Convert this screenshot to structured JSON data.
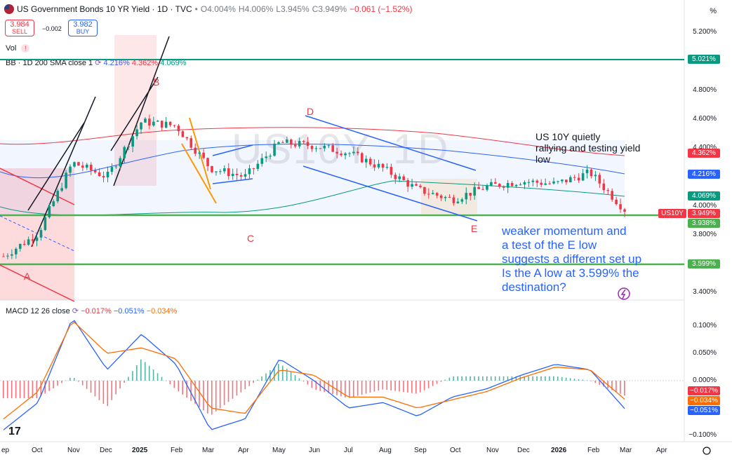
{
  "header": {
    "title": "US Government Bonds 10 YR Yield · 1D · TVC",
    "ohlc_o": "O4.004%",
    "ohlc_h": "H4.006%",
    "ohlc_l": "L3.945%",
    "ohlc_c": "C3.949%",
    "change": "−0.061 (−1.52%)"
  },
  "trade": {
    "sell_price": "3.984",
    "sell_label": "SELL",
    "spread": "−0.002",
    "buy_price": "3.982",
    "buy_label": "BUY"
  },
  "indicators": {
    "vol": "Vol",
    "bb_label": "BB · 1D 200 SMA close 1",
    "bb_mid": "4.216%",
    "bb_upper": "4.362%",
    "bb_lower": "4.069%",
    "macd_label": "MACD 12 26 close",
    "macd_hist": "−0.017%",
    "macd_line": "−0.051%",
    "macd_signal": "−0.034%"
  },
  "axis": {
    "unit": "%",
    "price_ticks": [
      "5.200%",
      "4.800%",
      "4.600%",
      "4.400%",
      "4.000%",
      "3.800%",
      "3.400%"
    ],
    "macd_ticks": [
      "0.100%",
      "0.050%",
      "0.000%",
      "−0.100%"
    ],
    "x_ticks": [
      "ep",
      "Oct",
      "Nov",
      "Dec",
      "2025",
      "Feb",
      "Mar",
      "Apr",
      "May",
      "Jun",
      "Jul",
      "Aug",
      "Sep",
      "Oct",
      "Nov",
      "Dec",
      "2026",
      "Feb",
      "Mar",
      "Apr"
    ]
  },
  "price_labels": {
    "level_high": "5.021%",
    "bb_upper": "4.362%",
    "bb_mid": "4.216%",
    "bb_lower": "4.069%",
    "last": "3.949%",
    "symbol": "US10Y",
    "level_e": "3.938%",
    "level_a": "3.599%",
    "macd_hist": "−0.017%",
    "macd_signal": "−0.034%",
    "macd_line": "−0.051%"
  },
  "annotations": {
    "watermark": "US10Y, 1D",
    "note_top": [
      "US 10Y quietly",
      "rallying and testing yield",
      "low"
    ],
    "note_bottom": [
      "weaker momentum and",
      "a test of the E low",
      "suggests a different set up",
      "Is the A low at 3.599% the",
      "destination?"
    ],
    "waves": [
      "A",
      "B",
      "C",
      "D",
      "E"
    ]
  },
  "colors": {
    "up": "#089981",
    "down": "#f23645",
    "support": "#4caf50",
    "bb_mid": "#2962ff",
    "bb_upper": "#f23645",
    "bb_lower": "#089981",
    "macd_line": "#2962ff",
    "signal_line": "#ff6d00",
    "note": "#2962ff"
  },
  "chart_data": [
    {
      "type": "line",
      "title": "US Government Bonds 10 YR Yield · 1D · TVC",
      "xlabel": "",
      "ylabel": "",
      "x": [
        "Sep",
        "Oct",
        "Nov",
        "Dec",
        "2025",
        "Feb",
        "Mar",
        "Apr",
        "May",
        "Jun",
        "Jul",
        "Aug",
        "Sep",
        "Oct",
        "Nov",
        "Dec",
        "2026",
        "Feb",
        "Mar"
      ],
      "series": [
        {
          "values": [
            3.62,
            3.78,
            4.28,
            4.18,
            4.57,
            4.54,
            4.24,
            4.18,
            4.42,
            4.4,
            4.35,
            4.24,
            4.09,
            4.02,
            4.11,
            4.15,
            4.13,
            4.21,
            3.949
          ]
        }
      ],
      "ylim": [
        3.36,
        5.26
      ],
      "horizontal_levels": [
        5.021,
        3.938,
        3.599
      ],
      "grid": false
    },
    {
      "type": "line",
      "title": "MACD 12 26 close",
      "xlabel": "",
      "ylabel": "",
      "x": [
        "Sep",
        "Oct",
        "Nov",
        "Dec",
        "2025",
        "Feb",
        "Mar",
        "Apr",
        "May",
        "Jun",
        "Jul",
        "Aug",
        "Sep",
        "Oct",
        "Nov",
        "Dec",
        "2026",
        "Feb",
        "Mar"
      ],
      "series": [
        {
          "values": [
            -0.09,
            -0.04,
            0.115,
            0.02,
            0.085,
            0.03,
            -0.09,
            -0.07,
            0.04,
            0.0,
            -0.05,
            -0.04,
            -0.065,
            -0.03,
            -0.015,
            0.01,
            0.03,
            0.02,
            -0.051
          ]
        },
        {
          "values": [
            -0.07,
            -0.02,
            0.11,
            0.05,
            0.06,
            0.04,
            -0.05,
            -0.06,
            0.02,
            0.01,
            -0.03,
            -0.03,
            -0.05,
            -0.035,
            -0.02,
            0.005,
            0.025,
            0.02,
            -0.034
          ]
        }
      ],
      "ylim": [
        -0.11,
        0.12
      ],
      "grid": false
    }
  ]
}
